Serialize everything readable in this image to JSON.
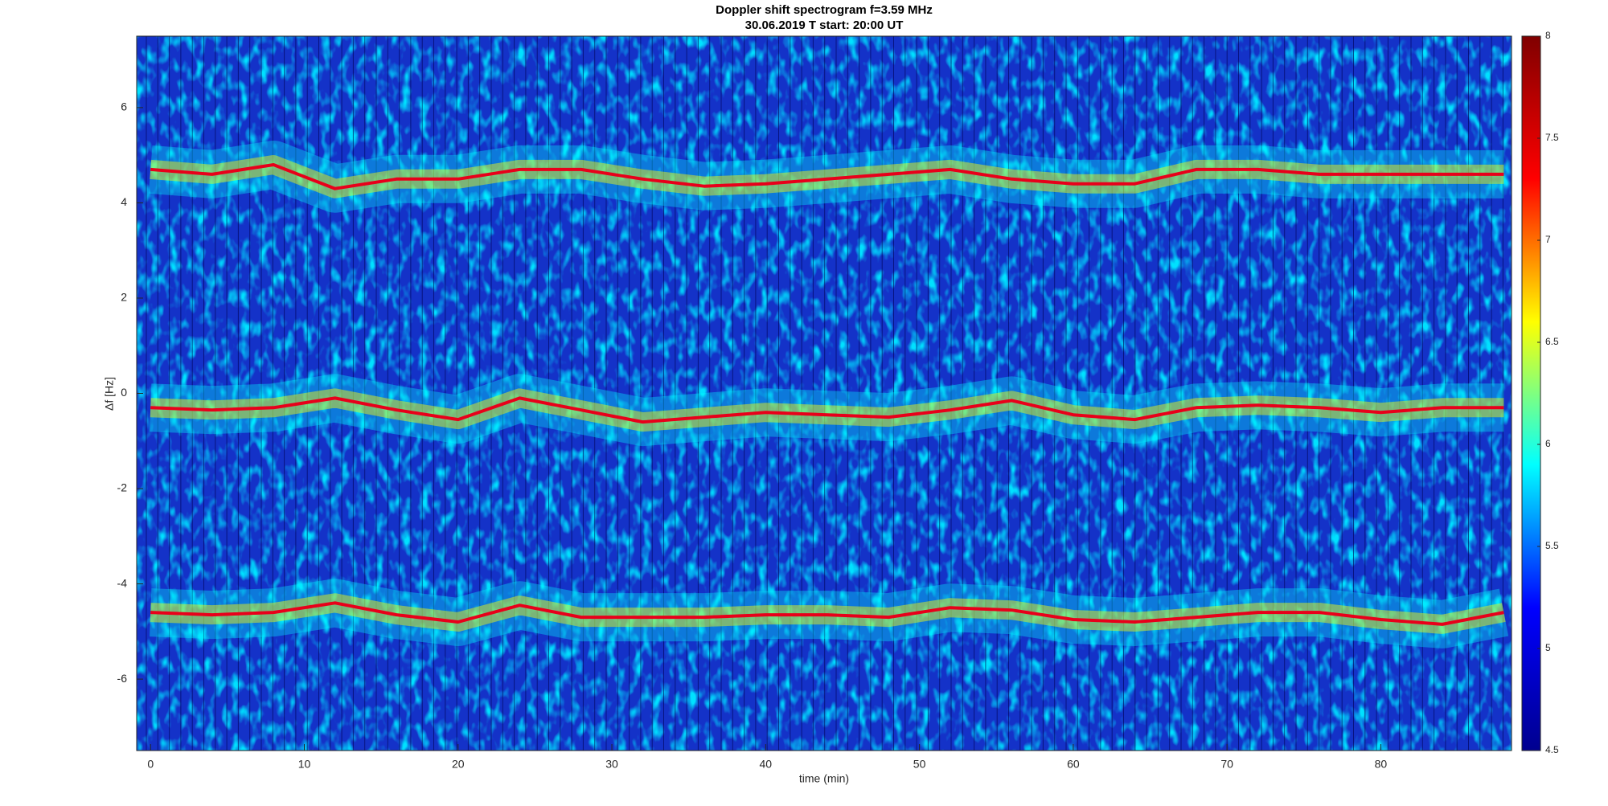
{
  "chart_data": {
    "type": "spectrogram",
    "title": "Doppler shift spectrogram f=3.59 MHz",
    "subtitle": "30.06.2019   T start: 20:00 UT",
    "x_label": "time (min)",
    "y_label": "Δf [Hz]",
    "xlim": [
      -0.9,
      88.5
    ],
    "xticks": [
      0,
      10,
      20,
      30,
      40,
      50,
      60,
      70,
      80
    ],
    "ylim": [
      -7.5,
      7.5
    ],
    "yticks": [
      -6,
      -4,
      -2,
      0,
      2,
      4,
      6
    ],
    "clim": [
      4.5,
      8
    ],
    "cticks": [
      4.5,
      5,
      5.5,
      6,
      6.5,
      7,
      7.5,
      8
    ],
    "colormap": [
      "#00008f",
      "#0000ff",
      "#00ffff",
      "#ffff00",
      "#ff0000",
      "#800000"
    ],
    "x": [
      0,
      4,
      8,
      12,
      16,
      20,
      24,
      28,
      32,
      36,
      40,
      44,
      48,
      52,
      56,
      60,
      64,
      68,
      72,
      76,
      80,
      84,
      88
    ],
    "series": [
      {
        "color": "#e8001a",
        "values": [
          4.7,
          4.6,
          4.8,
          4.3,
          4.5,
          4.5,
          4.7,
          4.7,
          4.5,
          4.35,
          4.4,
          4.5,
          4.6,
          4.7,
          4.5,
          4.4,
          4.4,
          4.7,
          4.7,
          4.6,
          4.6,
          4.6,
          4.6
        ]
      },
      {
        "color": "#e8001a",
        "values": [
          -0.3,
          -0.35,
          -0.3,
          -0.1,
          -0.35,
          -0.55,
          -0.1,
          -0.35,
          -0.6,
          -0.5,
          -0.4,
          -0.45,
          -0.5,
          -0.35,
          -0.15,
          -0.45,
          -0.55,
          -0.3,
          -0.25,
          -0.3,
          -0.4,
          -0.3,
          -0.3
        ]
      },
      {
        "color": "#e8001a",
        "values": [
          -4.6,
          -4.65,
          -4.6,
          -4.4,
          -4.65,
          -4.8,
          -4.45,
          -4.7,
          -4.7,
          -4.7,
          -4.65,
          -4.65,
          -4.7,
          -4.5,
          -4.55,
          -4.75,
          -4.8,
          -4.7,
          -4.6,
          -4.6,
          -4.75,
          -4.85,
          -4.6
        ]
      }
    ]
  }
}
